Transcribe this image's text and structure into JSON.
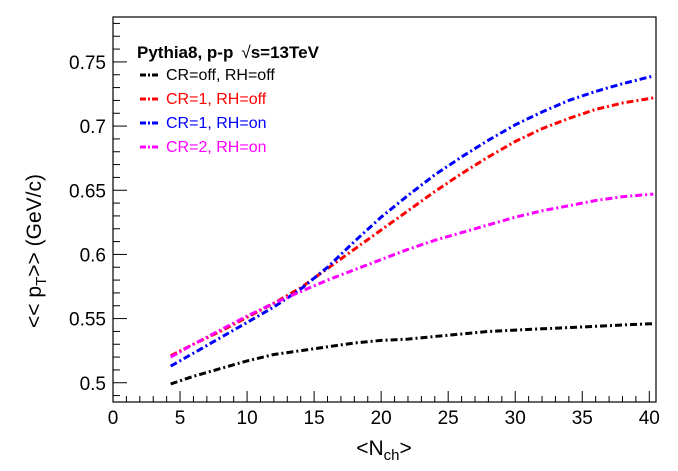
{
  "chart_data": {
    "type": "line",
    "title_prefix": "Pythia8, p-p",
    "title_sqrt": "√",
    "title_energy": "s=13TeV",
    "xlabel_main": "<N",
    "xlabel_sub": "ch",
    "xlabel_end": ">",
    "ylabel_pre": "<< p",
    "ylabel_sub": "T",
    "ylabel_post": ">>  (GeV/c)",
    "xlim": [
      0,
      40.5
    ],
    "ylim": [
      0.485,
      0.785
    ],
    "x_ticks": [
      0,
      5,
      10,
      15,
      20,
      25,
      30,
      35,
      40
    ],
    "x_tick_labels": [
      "0",
      "5",
      "10",
      "15",
      "20",
      "25",
      "30",
      "35",
      "40"
    ],
    "y_ticks": [
      0.5,
      0.55,
      0.6,
      0.65,
      0.7,
      0.75
    ],
    "y_tick_labels": [
      "0.5",
      "0.55",
      "0.6",
      "0.65",
      "0.7",
      "0.75"
    ],
    "legend_position": "top-left",
    "series": [
      {
        "name": "CR=off, RH=off",
        "color": "#000000",
        "x": [
          4.3,
          6,
          8,
          10,
          12,
          14,
          16,
          18,
          20,
          22,
          24,
          26,
          28,
          30,
          32,
          34,
          36,
          38,
          40.3
        ],
        "y": [
          0.499,
          0.505,
          0.511,
          0.517,
          0.522,
          0.525,
          0.528,
          0.531,
          0.533,
          0.534,
          0.536,
          0.538,
          0.54,
          0.541,
          0.542,
          0.543,
          0.544,
          0.545,
          0.546
        ]
      },
      {
        "name": "CR=1, RH=off",
        "color": "#ff0000",
        "x": [
          4.3,
          6,
          8,
          10,
          12,
          14,
          16,
          18,
          20,
          22,
          24,
          26,
          28,
          30,
          32,
          34,
          36,
          38,
          40.3
        ],
        "y": [
          0.521,
          0.53,
          0.54,
          0.551,
          0.562,
          0.574,
          0.589,
          0.604,
          0.619,
          0.634,
          0.649,
          0.663,
          0.676,
          0.688,
          0.698,
          0.706,
          0.713,
          0.718,
          0.722
        ]
      },
      {
        "name": "CR=1, RH=on",
        "color": "#0000ff",
        "x": [
          4.3,
          6,
          8,
          10,
          12,
          14,
          16,
          18,
          20,
          22,
          24,
          26,
          28,
          30,
          32,
          34,
          36,
          38,
          40.3
        ],
        "y": [
          0.513,
          0.523,
          0.535,
          0.547,
          0.559,
          0.573,
          0.59,
          0.61,
          0.629,
          0.646,
          0.662,
          0.676,
          0.689,
          0.701,
          0.711,
          0.72,
          0.727,
          0.733,
          0.739
        ]
      },
      {
        "name": "CR=2, RH=on",
        "color": "#ff00ff",
        "x": [
          4.3,
          6,
          8,
          10,
          12,
          14,
          16,
          18,
          20,
          22,
          24,
          26,
          28,
          30,
          32,
          34,
          36,
          38,
          40.3
        ],
        "y": [
          0.52,
          0.53,
          0.541,
          0.552,
          0.562,
          0.571,
          0.58,
          0.588,
          0.596,
          0.604,
          0.611,
          0.617,
          0.623,
          0.629,
          0.634,
          0.638,
          0.642,
          0.645,
          0.647
        ]
      }
    ]
  }
}
